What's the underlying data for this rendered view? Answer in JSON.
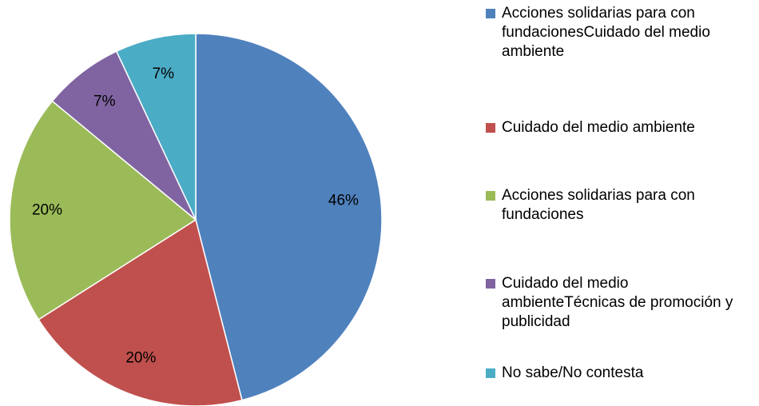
{
  "chart_data": {
    "type": "pie",
    "categories": [
      "Acciones solidarias para con fundacionesCuidado del medio ambiente",
      "Cuidado del medio ambiente",
      "Acciones solidarias para con fundaciones",
      "Cuidado del medio ambienteTécnicas de promoción y publicidad",
      "No sabe/No contesta"
    ],
    "values": [
      46,
      20,
      20,
      7,
      7
    ],
    "value_labels": [
      "46%",
      "20%",
      "20%",
      "7%",
      "7%"
    ],
    "colors": [
      "#4f81bd",
      "#c0504d",
      "#9bbb59",
      "#8064a2",
      "#4bacc6"
    ],
    "legend": "right"
  }
}
